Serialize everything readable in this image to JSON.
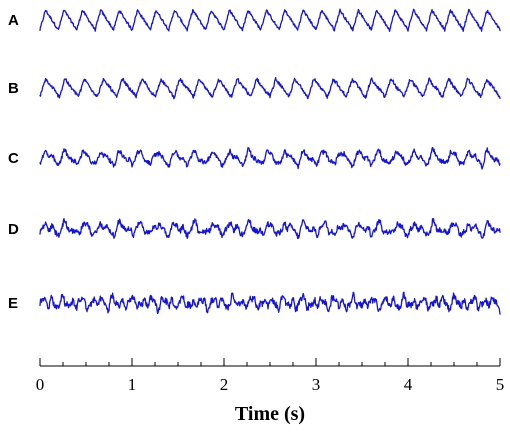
{
  "chart_data": {
    "type": "line",
    "xlabel": "Time (s)",
    "xlim": [
      0,
      5
    ],
    "xticks": [
      "0",
      "1",
      "2",
      "3",
      "4",
      "5"
    ],
    "grid": false,
    "legend": "none",
    "line_color": "#1414d6",
    "series": [
      {
        "name": "A",
        "cycles": 25,
        "regularity": 1.0
      },
      {
        "name": "B",
        "cycles": 24,
        "regularity": 0.9
      },
      {
        "name": "C",
        "cycles": 25,
        "regularity": 0.7
      },
      {
        "name": "D",
        "cycles": 25,
        "regularity": 0.55
      },
      {
        "name": "E",
        "cycles": 27,
        "regularity": 0.35
      }
    ]
  }
}
